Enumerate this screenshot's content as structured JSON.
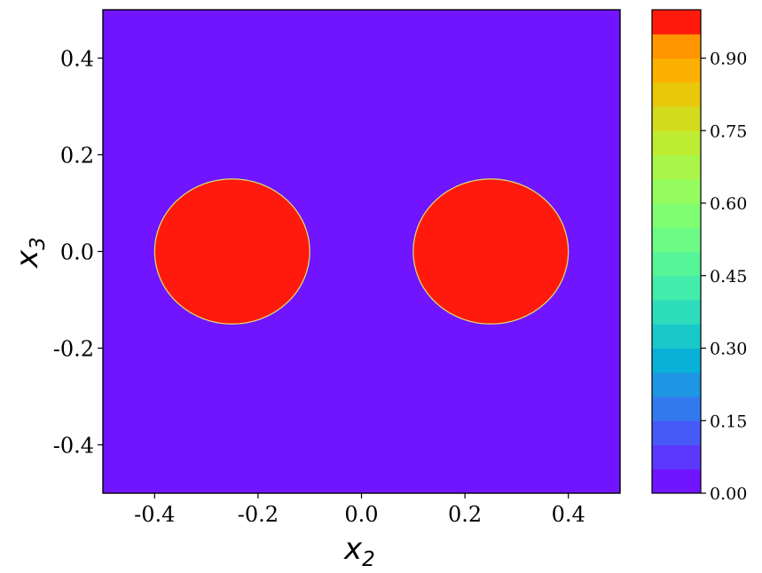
{
  "chart_data": {
    "type": "heatmap",
    "title": "",
    "xlabel": {
      "base": "x",
      "sub": "2"
    },
    "ylabel": {
      "base": "x",
      "sub": "3"
    },
    "xlim": [
      -0.5,
      0.5
    ],
    "ylim": [
      -0.5,
      0.5
    ],
    "x_ticks": [
      -0.4,
      -0.2,
      0.0,
      0.2,
      0.4
    ],
    "x_tick_labels": [
      "-0.4",
      "-0.2",
      "0.0",
      "0.2",
      "0.4"
    ],
    "y_ticks": [
      -0.4,
      -0.2,
      0.0,
      0.2,
      0.4
    ],
    "y_tick_labels": [
      "-0.4",
      "-0.2",
      "0.0",
      "0.2",
      "0.4"
    ],
    "background_value": 0.0,
    "regions": [
      {
        "shape": "circle",
        "center": [
          -0.25,
          0.0
        ],
        "radius": 0.15,
        "value": 1.0
      },
      {
        "shape": "circle",
        "center": [
          0.25,
          0.0
        ],
        "radius": 0.15,
        "value": 1.0
      }
    ],
    "grid": false,
    "colorbar": {
      "colormap": "rainbow",
      "range": [
        0.0,
        1.0
      ],
      "levels": 20,
      "ticks": [
        0.0,
        0.15,
        0.3,
        0.45,
        0.6,
        0.75,
        0.9
      ],
      "tick_labels": [
        "0.00",
        "0.15",
        "0.30",
        "0.45",
        "0.60",
        "0.75",
        "0.90"
      ],
      "band_colors": [
        "#7114ff",
        "#5c38fc",
        "#4759f6",
        "#3279ee",
        "#1e96e4",
        "#09b1d8",
        "#19c9c9",
        "#2ddcbb",
        "#42ecaa",
        "#56f698",
        "#6cfc86",
        "#80fe72",
        "#95fc5e",
        "#aaf648",
        "#beec32",
        "#d2dc1d",
        "#e7c909",
        "#fcb100",
        "#ff9600",
        "#ff1a0d"
      ]
    }
  }
}
